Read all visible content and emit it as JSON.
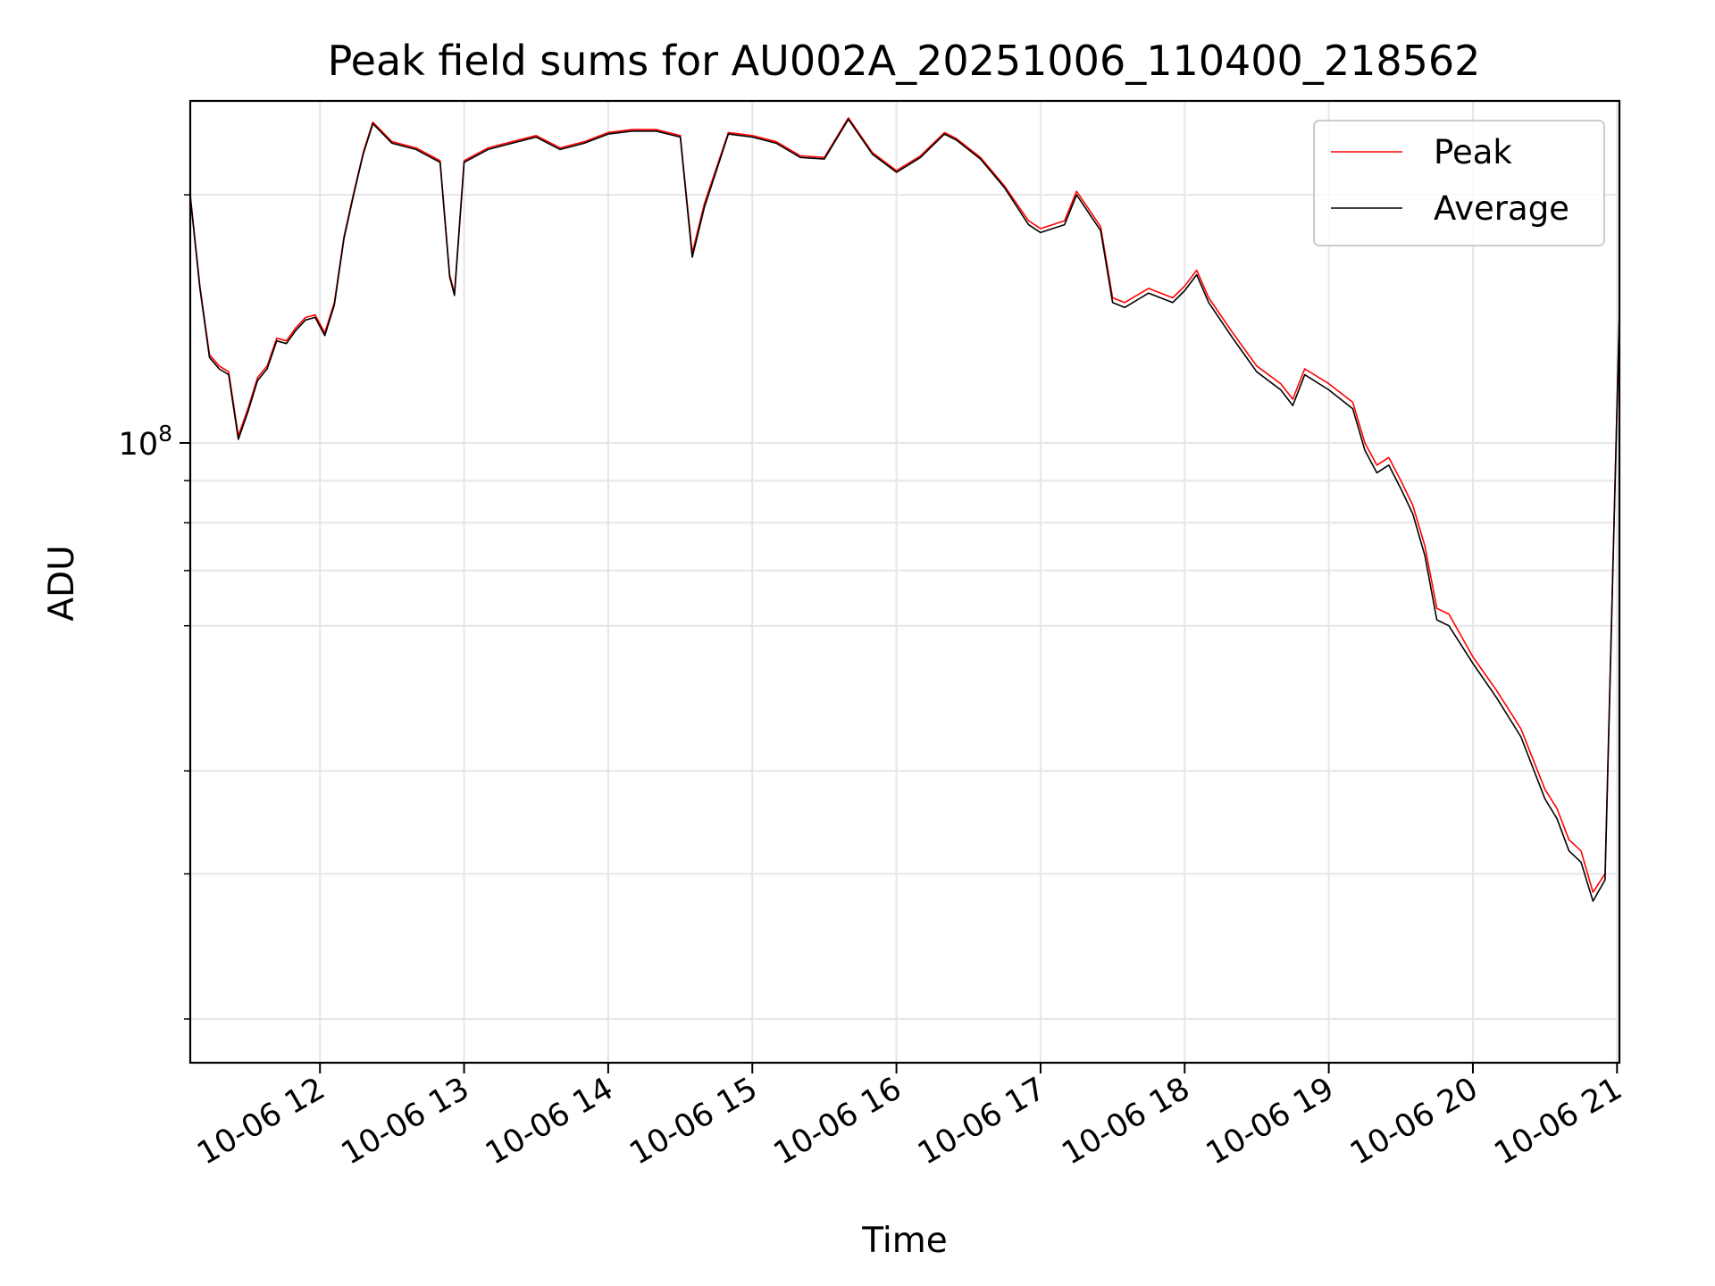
{
  "chart_data": {
    "type": "line",
    "title": "Peak field sums for AU002A_20251006_110400_218562",
    "xlabel": "Time",
    "ylabel": "ADU",
    "yscale": "log",
    "ylim": [
      17700000,
      260000000
    ],
    "xlim": [
      "2025-10-06 11:06",
      "2025-10-06 21:01"
    ],
    "grid": true,
    "legend_position": "top-right",
    "x_ticks": [
      {
        "value": "2025-10-06 12:00",
        "label": "10-06 12"
      },
      {
        "value": "2025-10-06 13:00",
        "label": "10-06 13"
      },
      {
        "value": "2025-10-06 14:00",
        "label": "10-06 14"
      },
      {
        "value": "2025-10-06 15:00",
        "label": "10-06 15"
      },
      {
        "value": "2025-10-06 16:00",
        "label": "10-06 16"
      },
      {
        "value": "2025-10-06 17:00",
        "label": "10-06 17"
      },
      {
        "value": "2025-10-06 18:00",
        "label": "10-06 18"
      },
      {
        "value": "2025-10-06 19:00",
        "label": "10-06 19"
      },
      {
        "value": "2025-10-06 20:00",
        "label": "10-06 20"
      },
      {
        "value": "2025-10-06 21:00",
        "label": "10-06 21"
      }
    ],
    "y_major_ticks": [
      {
        "value": 100000000,
        "base": "10",
        "exp": "8"
      }
    ],
    "y_minor_ticks": [
      20000000,
      30000000,
      40000000,
      60000000,
      70000000,
      80000000,
      90000000,
      200000000
    ],
    "series": [
      {
        "name": "Peak",
        "color": "#ff0000",
        "x": [
          "2025-10-06 11:06",
          "2025-10-06 11:10",
          "2025-10-06 11:14",
          "2025-10-06 11:18",
          "2025-10-06 11:22",
          "2025-10-06 11:26",
          "2025-10-06 11:30",
          "2025-10-06 11:34",
          "2025-10-06 11:38",
          "2025-10-06 11:42",
          "2025-10-06 11:46",
          "2025-10-06 11:50",
          "2025-10-06 11:54",
          "2025-10-06 11:58",
          "2025-10-06 12:02",
          "2025-10-06 12:06",
          "2025-10-06 12:10",
          "2025-10-06 12:14",
          "2025-10-06 12:18",
          "2025-10-06 12:22",
          "2025-10-06 12:30",
          "2025-10-06 12:40",
          "2025-10-06 12:50",
          "2025-10-06 12:54",
          "2025-10-06 12:56",
          "2025-10-06 13:00",
          "2025-10-06 13:10",
          "2025-10-06 13:20",
          "2025-10-06 13:30",
          "2025-10-06 13:40",
          "2025-10-06 13:50",
          "2025-10-06 14:00",
          "2025-10-06 14:10",
          "2025-10-06 14:20",
          "2025-10-06 14:30",
          "2025-10-06 14:35",
          "2025-10-06 14:40",
          "2025-10-06 14:50",
          "2025-10-06 15:00",
          "2025-10-06 15:10",
          "2025-10-06 15:20",
          "2025-10-06 15:30",
          "2025-10-06 15:40",
          "2025-10-06 15:50",
          "2025-10-06 16:00",
          "2025-10-06 16:10",
          "2025-10-06 16:20",
          "2025-10-06 16:25",
          "2025-10-06 16:35",
          "2025-10-06 16:45",
          "2025-10-06 16:55",
          "2025-10-06 17:00",
          "2025-10-06 17:10",
          "2025-10-06 17:15",
          "2025-10-06 17:25",
          "2025-10-06 17:30",
          "2025-10-06 17:35",
          "2025-10-06 17:45",
          "2025-10-06 17:55",
          "2025-10-06 18:00",
          "2025-10-06 18:05",
          "2025-10-06 18:10",
          "2025-10-06 18:20",
          "2025-10-06 18:30",
          "2025-10-06 18:40",
          "2025-10-06 18:45",
          "2025-10-06 18:50",
          "2025-10-06 19:00",
          "2025-10-06 19:10",
          "2025-10-06 19:15",
          "2025-10-06 19:20",
          "2025-10-06 19:25",
          "2025-10-06 19:30",
          "2025-10-06 19:35",
          "2025-10-06 19:40",
          "2025-10-06 19:45",
          "2025-10-06 19:50",
          "2025-10-06 20:00",
          "2025-10-06 20:10",
          "2025-10-06 20:20",
          "2025-10-06 20:30",
          "2025-10-06 20:35",
          "2025-10-06 20:40",
          "2025-10-06 20:45",
          "2025-10-06 20:50",
          "2025-10-06 20:55",
          "2025-10-06 21:01"
        ],
        "values": [
          200000000,
          155000000,
          128000000,
          124000000,
          122000000,
          102000000,
          110000000,
          120000000,
          124000000,
          134000000,
          133000000,
          138000000,
          142000000,
          143000000,
          136000000,
          148000000,
          178000000,
          201000000,
          225000000,
          245000000,
          232000000,
          228000000,
          220000000,
          160000000,
          152000000,
          220000000,
          228000000,
          232000000,
          236000000,
          228000000,
          232000000,
          238000000,
          240000000,
          240000000,
          236000000,
          170000000,
          195000000,
          238000000,
          236000000,
          232000000,
          223000000,
          222000000,
          248000000,
          225000000,
          214000000,
          223000000,
          238000000,
          234000000,
          222000000,
          205000000,
          186000000,
          182000000,
          186000000,
          202000000,
          183000000,
          150000000,
          148000000,
          154000000,
          150000000,
          155000000,
          162000000,
          150000000,
          136000000,
          124000000,
          118000000,
          113000000,
          123000000,
          118000000,
          112000000,
          100000000,
          94000000,
          96000000,
          90000000,
          84000000,
          75000000,
          63000000,
          62000000,
          55000000,
          50000000,
          45000000,
          38000000,
          36000000,
          33000000,
          32000000,
          28500000,
          30000000,
          145000000
        ]
      },
      {
        "name": "Average",
        "color": "#000000",
        "x": [
          "2025-10-06 11:06",
          "2025-10-06 11:10",
          "2025-10-06 11:14",
          "2025-10-06 11:18",
          "2025-10-06 11:22",
          "2025-10-06 11:26",
          "2025-10-06 11:30",
          "2025-10-06 11:34",
          "2025-10-06 11:38",
          "2025-10-06 11:42",
          "2025-10-06 11:46",
          "2025-10-06 11:50",
          "2025-10-06 11:54",
          "2025-10-06 11:58",
          "2025-10-06 12:02",
          "2025-10-06 12:06",
          "2025-10-06 12:10",
          "2025-10-06 12:14",
          "2025-10-06 12:18",
          "2025-10-06 12:22",
          "2025-10-06 12:30",
          "2025-10-06 12:40",
          "2025-10-06 12:50",
          "2025-10-06 12:54",
          "2025-10-06 12:56",
          "2025-10-06 13:00",
          "2025-10-06 13:10",
          "2025-10-06 13:20",
          "2025-10-06 13:30",
          "2025-10-06 13:40",
          "2025-10-06 13:50",
          "2025-10-06 14:00",
          "2025-10-06 14:10",
          "2025-10-06 14:20",
          "2025-10-06 14:30",
          "2025-10-06 14:35",
          "2025-10-06 14:40",
          "2025-10-06 14:50",
          "2025-10-06 15:00",
          "2025-10-06 15:10",
          "2025-10-06 15:20",
          "2025-10-06 15:30",
          "2025-10-06 15:40",
          "2025-10-06 15:50",
          "2025-10-06 16:00",
          "2025-10-06 16:10",
          "2025-10-06 16:20",
          "2025-10-06 16:25",
          "2025-10-06 16:35",
          "2025-10-06 16:45",
          "2025-10-06 16:55",
          "2025-10-06 17:00",
          "2025-10-06 17:10",
          "2025-10-06 17:15",
          "2025-10-06 17:25",
          "2025-10-06 17:30",
          "2025-10-06 17:35",
          "2025-10-06 17:45",
          "2025-10-06 17:55",
          "2025-10-06 18:00",
          "2025-10-06 18:05",
          "2025-10-06 18:10",
          "2025-10-06 18:20",
          "2025-10-06 18:30",
          "2025-10-06 18:40",
          "2025-10-06 18:45",
          "2025-10-06 18:50",
          "2025-10-06 19:00",
          "2025-10-06 19:10",
          "2025-10-06 19:15",
          "2025-10-06 19:20",
          "2025-10-06 19:25",
          "2025-10-06 19:30",
          "2025-10-06 19:35",
          "2025-10-06 19:40",
          "2025-10-06 19:45",
          "2025-10-06 19:50",
          "2025-10-06 20:00",
          "2025-10-06 20:10",
          "2025-10-06 20:20",
          "2025-10-06 20:30",
          "2025-10-06 20:35",
          "2025-10-06 20:40",
          "2025-10-06 20:45",
          "2025-10-06 20:50",
          "2025-10-06 20:55",
          "2025-10-06 21:01"
        ],
        "values": [
          199000000,
          154000000,
          127000000,
          123000000,
          121000000,
          101000000,
          109000000,
          119000000,
          123000000,
          133000000,
          132000000,
          137000000,
          141000000,
          142000000,
          135000000,
          147000000,
          177000000,
          200000000,
          224000000,
          244000000,
          231000000,
          227000000,
          219000000,
          159000000,
          151000000,
          219000000,
          227000000,
          231000000,
          235000000,
          227000000,
          231000000,
          237000000,
          239000000,
          239000000,
          235000000,
          168000000,
          193000000,
          237000000,
          235000000,
          231000000,
          222000000,
          221000000,
          247000000,
          224000000,
          213000000,
          222000000,
          237000000,
          233000000,
          221000000,
          204000000,
          184000000,
          180000000,
          184000000,
          200000000,
          181000000,
          148000000,
          146000000,
          152000000,
          148000000,
          153000000,
          160000000,
          148000000,
          134000000,
          122000000,
          116000000,
          111000000,
          121000000,
          116000000,
          110000000,
          98000000,
          92000000,
          94000000,
          88000000,
          82000000,
          73000000,
          61000000,
          60000000,
          54000000,
          49000000,
          44000000,
          37000000,
          35000000,
          32000000,
          31000000,
          27800000,
          29500000,
          144000000
        ]
      }
    ]
  }
}
